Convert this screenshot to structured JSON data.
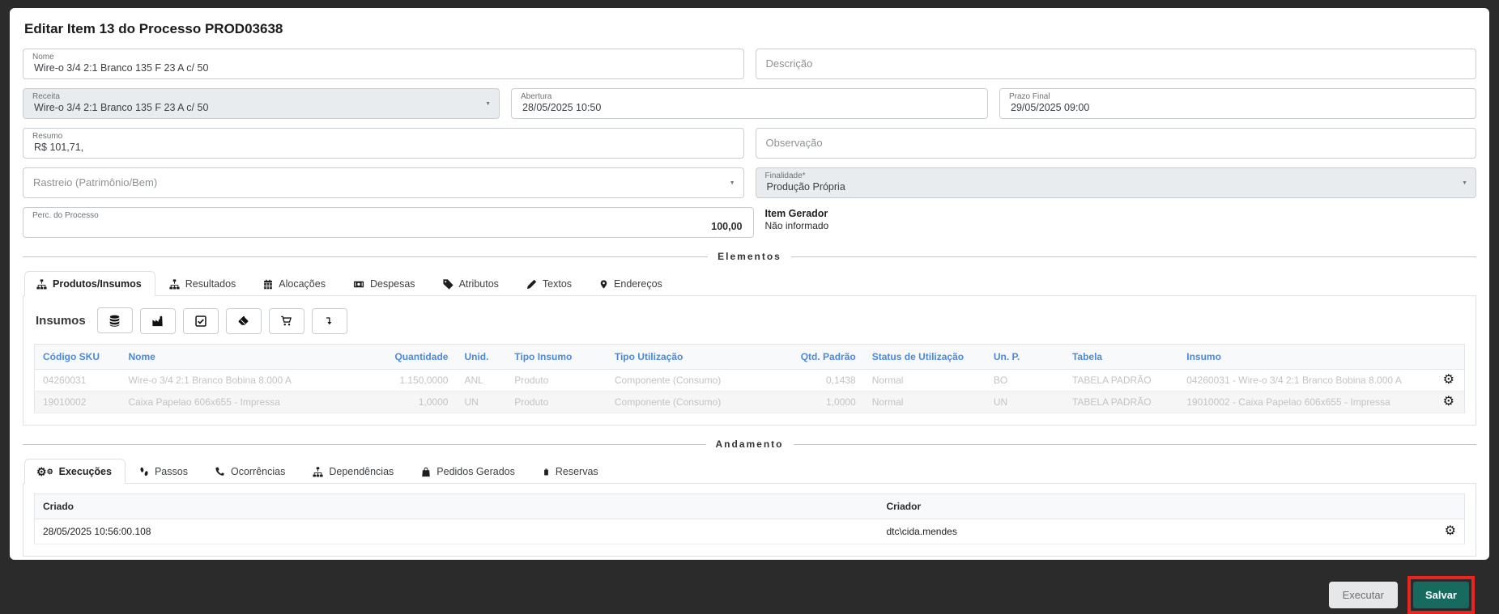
{
  "page": {
    "title": "Editar Item 13 do Processo PROD03638"
  },
  "colors": {
    "accent_blue": "#4a89dc",
    "salvar_green": "#166a5e",
    "highlight_red": "#e9261d",
    "disabled_bg": "#e9ecef"
  },
  "form": {
    "nome": {
      "label": "Nome",
      "value": "Wire-o 3/4 2:1 Branco 135 F 23 A c/ 50"
    },
    "descricao": {
      "placeholder": "Descrição"
    },
    "receita": {
      "label": "Receita",
      "value": "Wire-o 3/4 2:1 Branco 135 F 23 A c/ 50"
    },
    "abertura": {
      "label": "Abertura",
      "value": "28/05/2025 10:50"
    },
    "prazo_final": {
      "label": "Prazo Final",
      "value": "29/05/2025 09:00"
    },
    "resumo": {
      "label": "Resumo",
      "value": "R$ 101,71,"
    },
    "observacao": {
      "placeholder": "Observação"
    },
    "rastreio": {
      "placeholder": "Rastreio (Patrimônio/Bem)"
    },
    "finalidade": {
      "label": "Finalidade*",
      "value": "Produção Própria"
    },
    "perc_processo": {
      "label": "Perc. do Processo",
      "value": "100,00"
    },
    "item_gerador": {
      "label": "Item Gerador",
      "value": "Não informado"
    }
  },
  "elementos": {
    "section_label": "Elementos",
    "tabs": [
      {
        "name": "produtos-insumos",
        "label": "Produtos/Insumos",
        "icon": "sitemap",
        "active": true
      },
      {
        "name": "resultados",
        "label": "Resultados",
        "icon": "sitemap",
        "active": false
      },
      {
        "name": "alocacoes",
        "label": "Alocações",
        "icon": "calendar",
        "active": false
      },
      {
        "name": "despesas",
        "label": "Despesas",
        "icon": "money",
        "active": false
      },
      {
        "name": "atributos",
        "label": "Atributos",
        "icon": "tag",
        "active": false
      },
      {
        "name": "textos",
        "label": "Textos",
        "icon": "pencil",
        "active": false
      },
      {
        "name": "enderecos",
        "label": "Endereços",
        "icon": "map-marker",
        "active": false
      }
    ],
    "insumos": {
      "title": "Insumos",
      "toolbar": [
        {
          "name": "database"
        },
        {
          "name": "factory"
        },
        {
          "name": "check-square"
        },
        {
          "name": "eraser"
        },
        {
          "name": "cart"
        },
        {
          "name": "arrow-down"
        }
      ],
      "table": {
        "headers": [
          "Código SKU",
          "Nome",
          "Quantidade",
          "Unid.",
          "Tipo Insumo",
          "Tipo Utilização",
          "Qtd. Padrão",
          "Status de Utilização",
          "Un. P.",
          "Tabela",
          "Insumo"
        ],
        "rows": [
          [
            "04260031",
            "Wire-o 3/4 2:1 Branco Bobina 8.000 A",
            "1.150,0000",
            "ANL",
            "Produto",
            "Componente (Consumo)",
            "0,1438",
            "Normal",
            "BO",
            "TABELA PADRÃO",
            "04260031 - Wire-o 3/4 2:1 Branco Bobina 8.000 A"
          ],
          [
            "19010002",
            "Caixa Papelao 606x655 - Impressa",
            "1,0000",
            "UN",
            "Produto",
            "Componente (Consumo)",
            "1,0000",
            "Normal",
            "UN",
            "TABELA PADRÃO",
            "19010002 - Caixa Papelao 606x655 - Impressa"
          ]
        ]
      }
    }
  },
  "andamento": {
    "section_label": "Andamento",
    "tabs": [
      {
        "name": "execucoes",
        "label": "Execuções",
        "icon": "gears",
        "active": true
      },
      {
        "name": "passos",
        "label": "Passos",
        "icon": "shoe-prints",
        "active": false
      },
      {
        "name": "ocorrencias",
        "label": "Ocorrências",
        "icon": "phone",
        "active": false
      },
      {
        "name": "dependencias",
        "label": "Dependências",
        "icon": "hierarchy",
        "active": false
      },
      {
        "name": "pedidos-gerados",
        "label": "Pedidos Gerados",
        "icon": "shopping-bag",
        "active": false
      },
      {
        "name": "reservas",
        "label": "Reservas",
        "icon": "battery",
        "active": false
      }
    ],
    "table": {
      "headers": [
        "Criado",
        "Criador"
      ],
      "rows": [
        [
          "28/05/2025 10:56:00.108",
          "dtc\\cida.mendes"
        ]
      ]
    }
  },
  "footer": {
    "executar": "Executar",
    "salvar": "Salvar"
  }
}
